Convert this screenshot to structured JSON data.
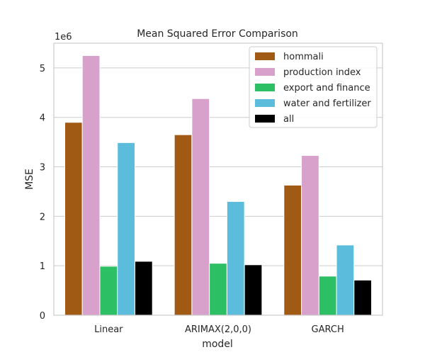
{
  "chart_data": {
    "type": "bar",
    "title": "Mean Squared Error Comparison",
    "xlabel": "model",
    "ylabel": "MSE",
    "y_scale_label": "1e6",
    "categories": [
      "Linear",
      "ARIMAX(2,0,0)",
      "GARCH"
    ],
    "series": [
      {
        "name": "hommali",
        "color": "#a05a14",
        "values": [
          3900000,
          3650000,
          2630000
        ]
      },
      {
        "name": "production index",
        "color": "#d8a1cc",
        "values": [
          5250000,
          4380000,
          3230000
        ]
      },
      {
        "name": "export and finance",
        "color": "#2dbf64",
        "values": [
          990000,
          1050000,
          790000
        ]
      },
      {
        "name": "water and fertilizer",
        "color": "#5bbcdc",
        "values": [
          3490000,
          2300000,
          1420000
        ]
      },
      {
        "name": "all",
        "color": "#000000",
        "values": [
          1090000,
          1020000,
          710000
        ]
      }
    ],
    "ylim": [
      0,
      5500000
    ],
    "yticks": [
      0,
      1000000,
      2000000,
      3000000,
      4000000,
      5000000
    ],
    "ytick_labels": [
      "0",
      "1",
      "2",
      "3",
      "4",
      "5"
    ],
    "grid": "horizontal",
    "legend_position": "top-right"
  }
}
